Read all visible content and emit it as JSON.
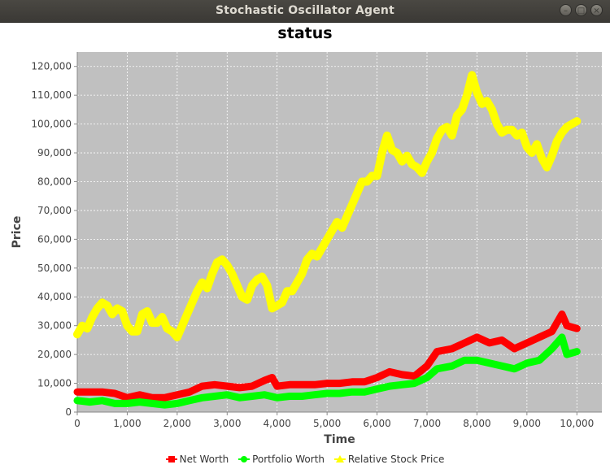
{
  "window": {
    "title": "Stochastic Oscillator Agent"
  },
  "colors": {
    "plot_bg": "#c0c0c0",
    "grid": "#ffffff",
    "net_worth": "#ff0000",
    "portfolio_worth": "#00ff00",
    "stock_price": "#ffff00"
  },
  "chart_data": {
    "type": "line",
    "title": "status",
    "xlabel": "Time",
    "ylabel": "Price",
    "xlim": [
      0,
      10500
    ],
    "ylim": [
      0,
      125000
    ],
    "xticks": [
      0,
      1000,
      2000,
      3000,
      4000,
      5000,
      6000,
      7000,
      8000,
      9000,
      10000
    ],
    "yticks": [
      0,
      10000,
      20000,
      30000,
      40000,
      50000,
      60000,
      70000,
      80000,
      90000,
      100000,
      110000,
      120000
    ],
    "xtick_labels": [
      "0",
      "1,000",
      "2,000",
      "3,000",
      "4,000",
      "5,000",
      "6,000",
      "7,000",
      "8,000",
      "9,000",
      "10,000"
    ],
    "ytick_labels": [
      "0",
      "10,000",
      "20,000",
      "30,000",
      "40,000",
      "50,000",
      "60,000",
      "70,000",
      "80,000",
      "90,000",
      "100,000",
      "110,000",
      "120,000"
    ],
    "grid": true,
    "legend_position": "bottom",
    "series": [
      {
        "name": "Net Worth",
        "marker": "square",
        "x": [
          0,
          250,
          500,
          750,
          1000,
          1250,
          1500,
          1750,
          2000,
          2250,
          2500,
          2750,
          3000,
          3250,
          3500,
          3750,
          3900,
          4000,
          4250,
          4500,
          4750,
          5000,
          5250,
          5500,
          5750,
          6000,
          6250,
          6500,
          6750,
          7000,
          7200,
          7500,
          7750,
          8000,
          8250,
          8500,
          8750,
          9000,
          9250,
          9500,
          9700,
          9800,
          10000
        ],
        "values": [
          7000,
          7000,
          7000,
          6500,
          5000,
          6000,
          5000,
          5000,
          6000,
          7000,
          9000,
          9500,
          9000,
          8500,
          9000,
          11000,
          12000,
          9000,
          9500,
          9500,
          9500,
          10000,
          10000,
          10500,
          10500,
          12000,
          14000,
          13000,
          12500,
          16000,
          21000,
          22000,
          24000,
          26000,
          24000,
          25000,
          22000,
          24000,
          26000,
          28000,
          34000,
          30000,
          29000
        ]
      },
      {
        "name": "Portfolio Worth",
        "marker": "circle",
        "x": [
          0,
          250,
          500,
          750,
          1000,
          1250,
          1500,
          1750,
          2000,
          2250,
          2500,
          2750,
          3000,
          3250,
          3500,
          3750,
          4000,
          4250,
          4500,
          4750,
          5000,
          5250,
          5500,
          5750,
          6000,
          6250,
          6500,
          6750,
          7000,
          7200,
          7500,
          7750,
          8000,
          8250,
          8500,
          8750,
          9000,
          9250,
          9500,
          9700,
          9800,
          10000
        ],
        "values": [
          4000,
          3500,
          4000,
          3000,
          3000,
          3500,
          3000,
          2500,
          3000,
          4000,
          5000,
          5500,
          6000,
          5000,
          5500,
          6000,
          5000,
          5500,
          5500,
          6000,
          6500,
          6500,
          7000,
          7000,
          8000,
          9000,
          9500,
          10000,
          12000,
          15000,
          16000,
          18000,
          18000,
          17000,
          16000,
          15000,
          17000,
          18000,
          22000,
          26000,
          20000,
          21000
        ]
      },
      {
        "name": "Relative Stock Price",
        "marker": "triangle",
        "x": [
          0,
          100,
          200,
          300,
          400,
          500,
          600,
          700,
          800,
          900,
          1000,
          1100,
          1200,
          1300,
          1400,
          1500,
          1600,
          1700,
          1800,
          1900,
          2000,
          2100,
          2200,
          2300,
          2400,
          2500,
          2600,
          2700,
          2800,
          2900,
          3000,
          3100,
          3200,
          3300,
          3400,
          3500,
          3600,
          3700,
          3800,
          3900,
          4000,
          4100,
          4200,
          4300,
          4400,
          4500,
          4600,
          4700,
          4800,
          4900,
          5000,
          5100,
          5200,
          5300,
          5400,
          5500,
          5600,
          5700,
          5800,
          5900,
          6000,
          6100,
          6200,
          6300,
          6400,
          6500,
          6600,
          6700,
          6800,
          6900,
          7000,
          7100,
          7200,
          7300,
          7400,
          7500,
          7600,
          7700,
          7800,
          7900,
          8000,
          8100,
          8200,
          8300,
          8400,
          8500,
          8600,
          8700,
          8800,
          8900,
          9000,
          9100,
          9200,
          9300,
          9400,
          9500,
          9600,
          9700,
          9800,
          9900,
          10000
        ],
        "values": [
          27000,
          30000,
          29000,
          33000,
          36000,
          38000,
          37000,
          34000,
          36000,
          35000,
          30000,
          28000,
          28000,
          34000,
          35000,
          31000,
          31000,
          33000,
          29000,
          28000,
          26000,
          30000,
          34000,
          38000,
          42000,
          45000,
          43000,
          48000,
          52000,
          53000,
          51000,
          48000,
          44000,
          40000,
          39000,
          44000,
          46000,
          47000,
          44000,
          36000,
          37000,
          38000,
          42000,
          42000,
          45000,
          48000,
          53000,
          55000,
          54000,
          57000,
          60000,
          63000,
          66000,
          64000,
          68000,
          72000,
          76000,
          80000,
          80000,
          82000,
          82000,
          90000,
          96000,
          91000,
          90000,
          87000,
          89000,
          86000,
          85000,
          83000,
          87000,
          90000,
          95000,
          98000,
          99000,
          96000,
          103000,
          105000,
          110000,
          117000,
          111000,
          107000,
          108000,
          105000,
          100000,
          97000,
          98000,
          98000,
          96000,
          97000,
          92000,
          90000,
          93000,
          88000,
          85000,
          89000,
          94000,
          97000,
          99000,
          100000,
          101000
        ]
      }
    ]
  }
}
